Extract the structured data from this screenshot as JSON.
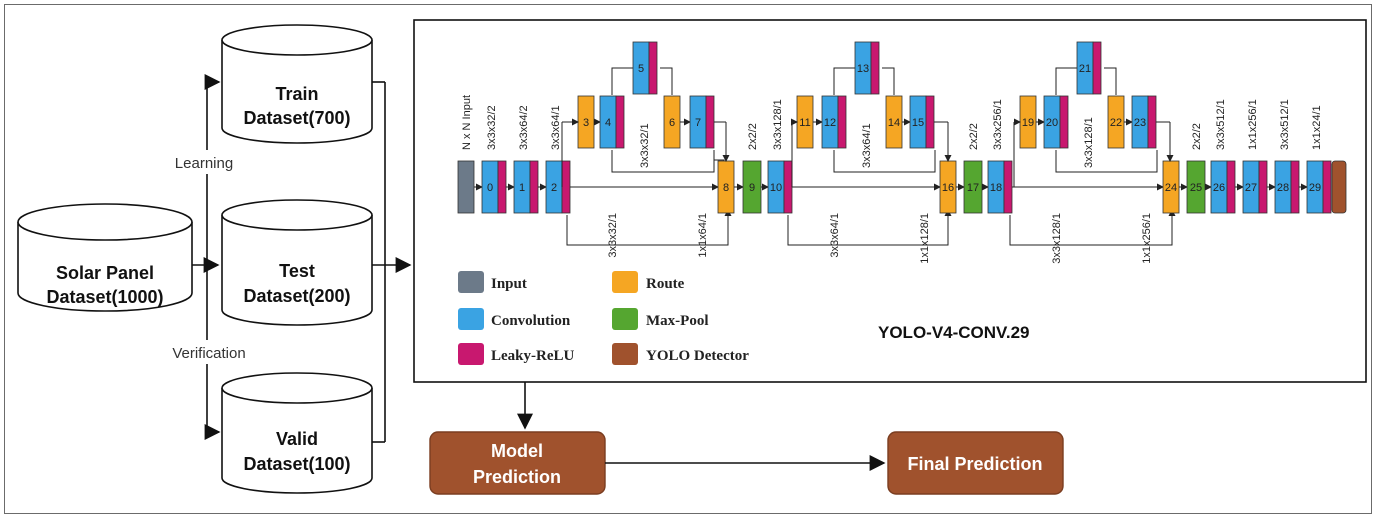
{
  "datasets": {
    "source": {
      "line1": "Solar Panel",
      "line2": "Dataset(1000)"
    },
    "train": {
      "line1": "Train",
      "line2": "Dataset(700)"
    },
    "test": {
      "line1": "Test",
      "line2": "Dataset(200)"
    },
    "valid": {
      "line1": "Valid",
      "line2": "Dataset(100)"
    }
  },
  "edge_labels": {
    "learning": "Learning",
    "verification": "Verification"
  },
  "model": {
    "title": "YOLO-V4-CONV.29",
    "input_label": "N x N Input",
    "layer_numbers": [
      "0",
      "1",
      "2",
      "3",
      "4",
      "5",
      "6",
      "7",
      "8",
      "9",
      "10",
      "11",
      "12",
      "13",
      "14",
      "15",
      "16",
      "17",
      "18",
      "19",
      "20",
      "21",
      "22",
      "23",
      "24",
      "25",
      "26",
      "27",
      "28",
      "29"
    ],
    "top_labels": [
      "3x3x32/2",
      "3x3x64/2",
      "3x3x64/1",
      "3x3x32/1",
      "2x2/2",
      "3x3x128/1",
      "3x3x64/1",
      "2x2/2",
      "3x3x256/1",
      "3x3x128/1",
      "2x2/2",
      "3x3x512/1",
      "1x1x256/1",
      "3x3x512/1",
      "1x1x24/1"
    ],
    "bottom_labels": [
      "3x3x32/1",
      "1x1x64/1",
      "3x3x64/1",
      "1x1x128/1",
      "3x3x128/1",
      "1x1x256/1"
    ]
  },
  "legend": {
    "input": "Input",
    "convolution": "Convolution",
    "leaky": "Leaky-ReLU",
    "route": "Route",
    "maxpool": "Max-Pool",
    "yolo": "YOLO Detector"
  },
  "colors": {
    "input": "#6c7a89",
    "convolution": "#3aa3e3",
    "leaky": "#c8186f",
    "route": "#f5a623",
    "maxpool": "#55a630",
    "yolo": "#a0522d",
    "prediction_box": "#a0522d"
  },
  "outputs": {
    "model_prediction": "Model Prediction",
    "final_prediction": "Final Prediction"
  }
}
